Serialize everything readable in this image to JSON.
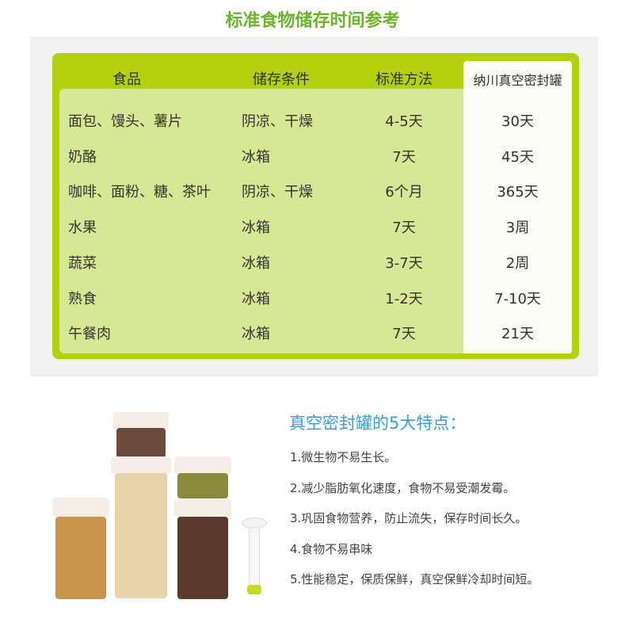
{
  "title": "标准食物储存时间参考",
  "table": {
    "headers": [
      "食品",
      "储存条件",
      "标准方法",
      "纳川真空密封罐"
    ],
    "rows": [
      [
        "面包、馒头、薯片",
        "阴凉、干燥",
        "4-5天",
        "30天"
      ],
      [
        "奶酪",
        "冰箱",
        "7天",
        "45天"
      ],
      [
        "咖啡、面粉、糖、茶叶",
        "阴凉、干燥",
        "6个月",
        "365天"
      ],
      [
        "水果",
        "冰箱",
        "7天",
        "3周"
      ],
      [
        "蔬菜",
        "冰箱",
        "3-7天",
        "2周"
      ],
      [
        "熟食",
        "冰箱",
        "1-2天",
        "7-10天"
      ],
      [
        "午餐肉",
        "冰箱",
        "7天",
        "21天"
      ]
    ]
  },
  "features": {
    "title": "真空密封罐的5大特点：",
    "items": [
      "1.微生物不易生长。",
      "2.减少脂肪氧化速度，食物不易受潮发霉。",
      "3.巩固食物营养，防止流失，保存时间长久。",
      "4.食物不易串味",
      "5.性能稳定，保质保鲜，真空保鲜冷却时间短。"
    ]
  },
  "colors": {
    "title": "#6cb42a",
    "card": "#b3d10e",
    "inner": "#d8e793",
    "feature_title": "#3a9ee0"
  }
}
